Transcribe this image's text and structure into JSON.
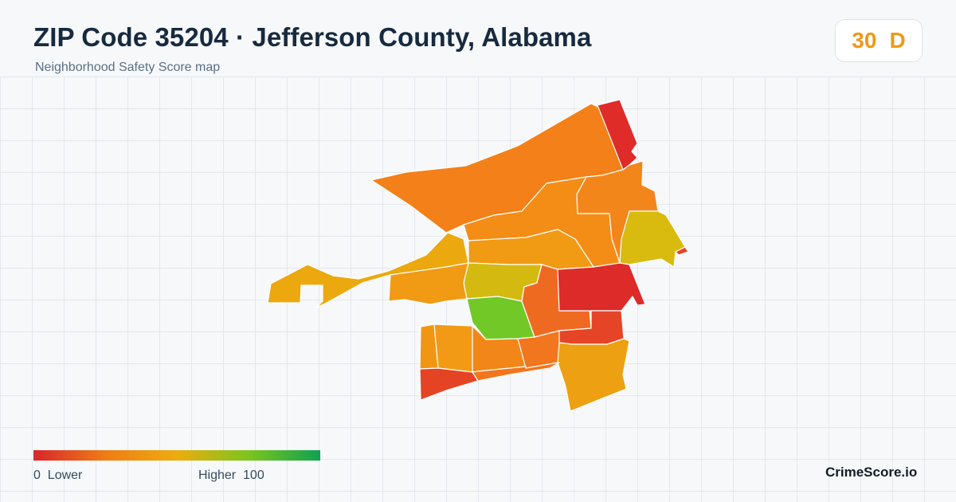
{
  "header": {
    "title": "ZIP Code 35204 · Jefferson County, Alabama",
    "subtitle": "Neighborhood Safety Score map"
  },
  "score_badge": {
    "score": "30",
    "grade": "D",
    "color": "#ee9a17"
  },
  "legend": {
    "min_value": "0",
    "min_label": "Lower",
    "max_label": "Higher",
    "max_value": "100",
    "colors": [
      "#d7262b",
      "#ef7c16",
      "#edac0e",
      "#7cc51d",
      "#0ea24f"
    ]
  },
  "map": {
    "regions": [
      {
        "id": "north-large",
        "color": "#f38018"
      },
      {
        "id": "northeast-strip",
        "color": "#df2c28"
      },
      {
        "id": "west-arm",
        "color": "#eca80f"
      },
      {
        "id": "north-central-band",
        "color": "#f48d16"
      },
      {
        "id": "northeast-center",
        "color": "#f3861a"
      },
      {
        "id": "east-upper",
        "color": "#d8bb0e"
      },
      {
        "id": "east-tip",
        "color": "#e5452a"
      },
      {
        "id": "west-center",
        "color": "#f19a13"
      },
      {
        "id": "center-yellow",
        "color": "#d4ba10"
      },
      {
        "id": "center-green",
        "color": "#72c826"
      },
      {
        "id": "center-orange",
        "color": "#ef6a21"
      },
      {
        "id": "east-red",
        "color": "#dd2b29"
      },
      {
        "id": "east-middle",
        "color": "#e64427"
      },
      {
        "id": "southwest-left",
        "color": "#f09613"
      },
      {
        "id": "southwest-inner",
        "color": "#f29a16"
      },
      {
        "id": "south-center-left",
        "color": "#f28619"
      },
      {
        "id": "south-center",
        "color": "#f2761d"
      },
      {
        "id": "southeast",
        "color": "#eda012"
      },
      {
        "id": "southwest-bottom",
        "color": "#e54424"
      }
    ]
  },
  "brand": "CrimeScore.io"
}
